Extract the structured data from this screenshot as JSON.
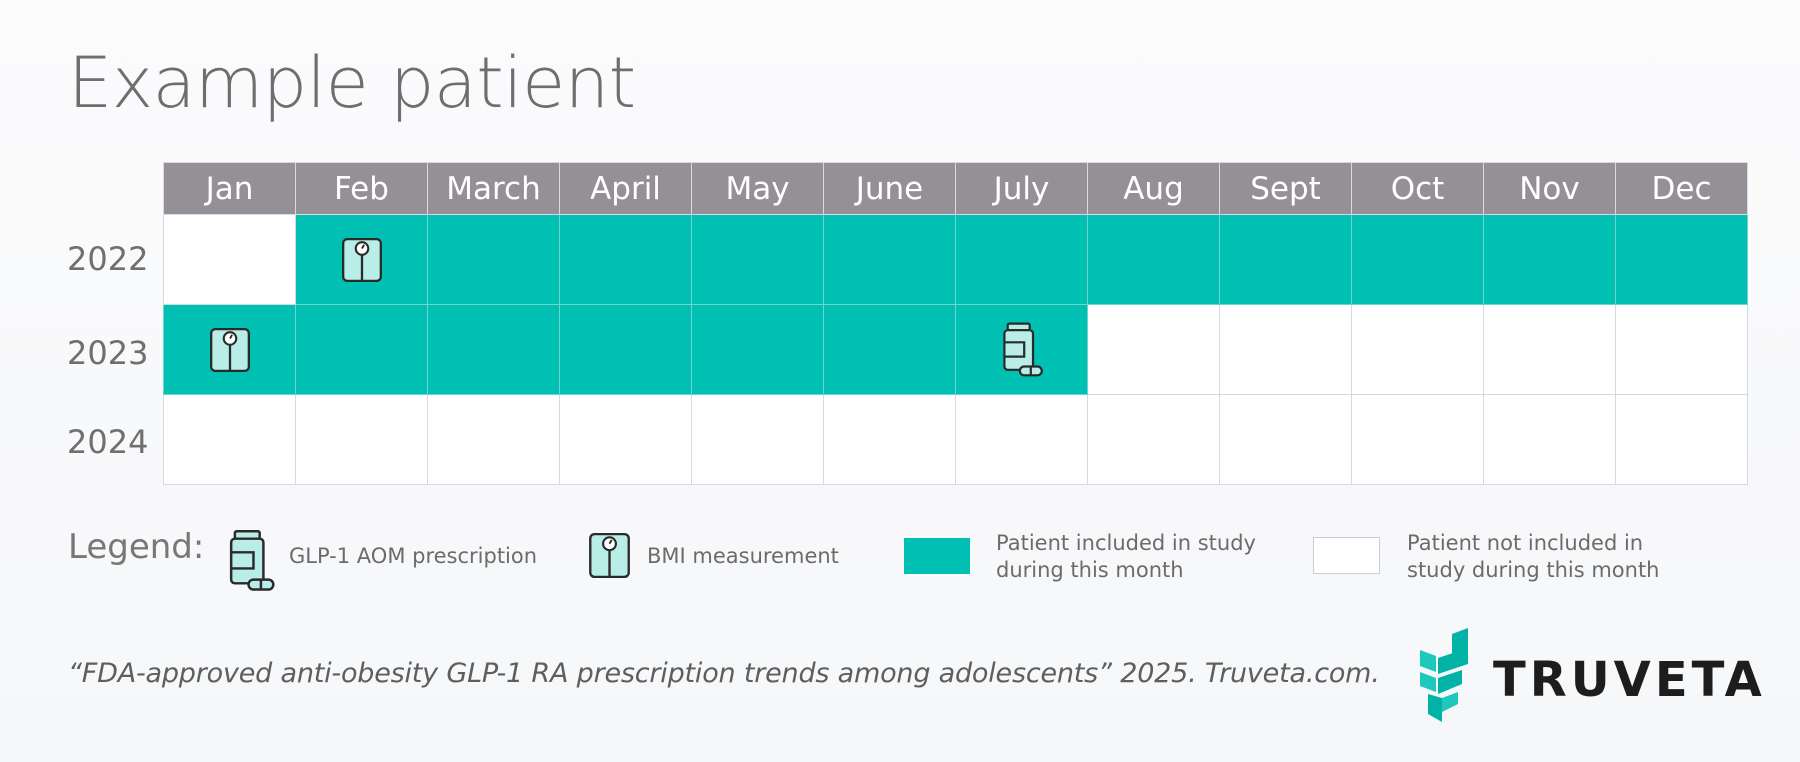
{
  "title": "Example patient",
  "months": [
    "Jan",
    "Feb",
    "March",
    "April",
    "May",
    "June",
    "July",
    "Aug",
    "Sept",
    "Oct",
    "Nov",
    "Dec"
  ],
  "years": [
    {
      "label": "2022",
      "included": [
        0,
        1,
        1,
        1,
        1,
        1,
        1,
        1,
        1,
        1,
        1,
        1
      ],
      "icons": {
        "1": "bmi-icon"
      }
    },
    {
      "label": "2023",
      "included": [
        1,
        1,
        1,
        1,
        1,
        1,
        1,
        0,
        0,
        0,
        0,
        0
      ],
      "icons": {
        "0": "bmi-icon",
        "6": "pill-bottle-icon"
      }
    },
    {
      "label": "2024",
      "included": [
        0,
        0,
        0,
        0,
        0,
        0,
        0,
        0,
        0,
        0,
        0,
        0
      ],
      "icons": {}
    }
  ],
  "legend": {
    "label": "Legend:",
    "glp1": "GLP-1 AOM prescription",
    "bmi": "BMI measurement",
    "included_line1": "Patient included in study",
    "included_line2": "during this month",
    "not_included_line1": "Patient not included in",
    "not_included_line2": "study during this month"
  },
  "citation": "“FDA-approved anti-obesity GLP-1 RA prescription trends among adolescents” 2025. Truveta.com.",
  "brand": "TRUVETA",
  "colors": {
    "included": "#00c0b3",
    "header": "#958f96",
    "icon_fill": "#b8ede8"
  }
}
